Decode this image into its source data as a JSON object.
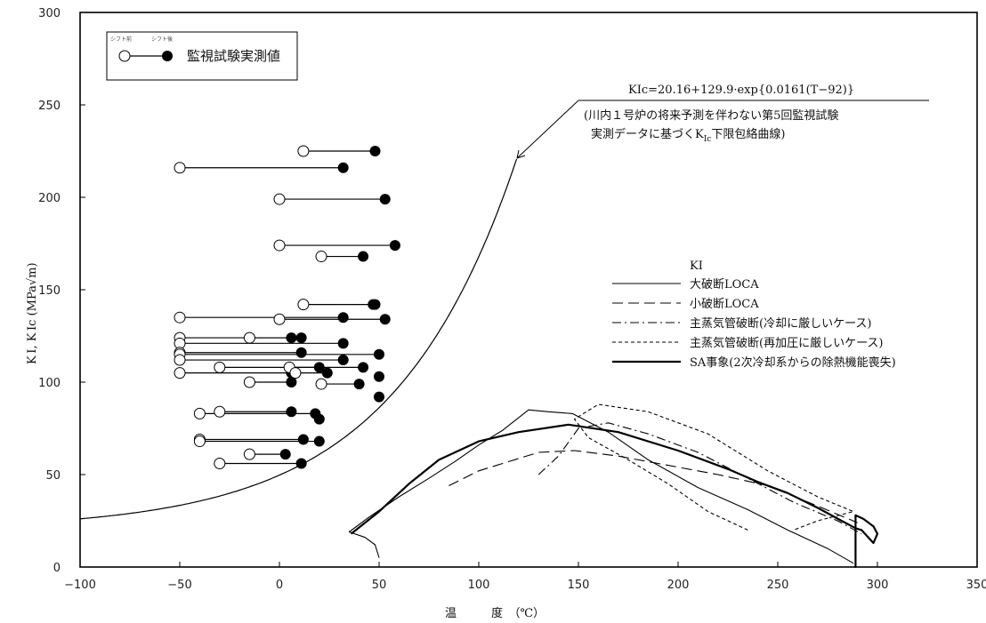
{
  "chart_data": {
    "type": "line",
    "xlabel": "温　　　度　（℃）",
    "ylabel": "K I, K Ic (MPa√m)",
    "xlim": [
      -100,
      350
    ],
    "ylim": [
      0,
      300
    ],
    "x_ticks": [
      "−100",
      "−50",
      "0",
      "50",
      "100",
      "150",
      "200",
      "250",
      "300",
      "350"
    ],
    "y_ticks": [
      "0",
      "50",
      "100",
      "150",
      "200",
      "250",
      "300"
    ],
    "grid": false,
    "box_legend": {
      "before_label": "シフト前",
      "after_label": "シフト後",
      "label": "監視試験実測値"
    },
    "curve_formula": "KIc=20.16+129.9·exp{0.0161(T−92)}",
    "curve_note_line1": "(川内１号炉の将来予測を伴わない第5回監視試験",
    "curve_note_line2": "実測データに基づくK",
    "curve_note_sub": "Ic",
    "curve_note_line2_end": "下限包絡曲線)",
    "legend": {
      "title": "KI",
      "items": [
        {
          "label": "大破断LOCA",
          "style": "solid"
        },
        {
          "label": "小破断LOCA",
          "style": "longdash"
        },
        {
          "label": "主蒸気管破断(冷却に厳しいケース)",
          "style": "dashdot"
        },
        {
          "label": "主蒸気管破断(再加圧に厳しいケース)",
          "style": "shortdash"
        },
        {
          "label": "SA事象(2次冷却系からの除熱機能喪失)",
          "style": "thick"
        }
      ]
    },
    "kic_curve": {
      "a": 20.16,
      "b": 129.9,
      "c": 0.0161,
      "t0": 92,
      "x_range": [
        -100,
        119
      ]
    },
    "surveillance_pairs": [
      {
        "before": 12,
        "after": 48,
        "k": 225
      },
      {
        "before": -50,
        "after": 32,
        "k": 216
      },
      {
        "before": 0,
        "after": 53,
        "k": 199
      },
      {
        "before": 0,
        "after": 58,
        "k": 174
      },
      {
        "before": 21,
        "after": 42,
        "k": 168
      },
      {
        "before": 12,
        "after": 47,
        "k": 142
      },
      {
        "before": -50,
        "after": 32,
        "k": 135
      },
      {
        "before": 0,
        "after": 53,
        "k": 134
      },
      {
        "before": -50,
        "after": 6,
        "k": 124
      },
      {
        "before": -15,
        "after": 11,
        "k": 124
      },
      {
        "before": -50,
        "after": 32,
        "k": 121
      },
      {
        "before": -50,
        "after": 11,
        "k": 116
      },
      {
        "before": -50,
        "after": 50,
        "k": 115
      },
      {
        "before": -50,
        "after": 32,
        "k": 112
      },
      {
        "before": -50,
        "after": 6,
        "k": 105
      },
      {
        "before": -30,
        "after": 42,
        "k": 108
      },
      {
        "before": 5,
        "after": 20,
        "k": 108
      },
      {
        "before": 8,
        "after": 24,
        "k": 105
      },
      {
        "before": -15,
        "after": 6,
        "k": 100
      },
      {
        "before": 21,
        "after": 40,
        "k": 99
      },
      {
        "before": -40,
        "after": 18,
        "k": 83
      },
      {
        "before": -30,
        "after": 6,
        "k": 84
      },
      {
        "before": -40,
        "after": 12,
        "k": 69
      },
      {
        "before": -40,
        "after": 20,
        "k": 68
      },
      {
        "before": -15,
        "after": 3,
        "k": 61
      },
      {
        "before": -30,
        "after": 11,
        "k": 56
      }
    ],
    "extra_after_points": [
      {
        "x": 50,
        "k": 103
      },
      {
        "x": 50,
        "k": 92
      },
      {
        "x": 20,
        "k": 80
      },
      {
        "x": 48,
        "k": 142
      }
    ],
    "transients": [
      {
        "name": "大破断LOCA",
        "style": "solid",
        "points": [
          [
            50,
            5
          ],
          [
            48,
            12
          ],
          [
            43,
            16
          ],
          [
            35,
            19
          ],
          [
            45,
            27
          ],
          [
            60,
            38
          ],
          [
            75,
            48
          ],
          [
            88,
            57
          ],
          [
            100,
            66
          ],
          [
            112,
            74
          ],
          [
            125,
            85
          ],
          [
            135,
            84
          ],
          [
            147,
            83
          ],
          [
            165,
            73
          ],
          [
            185,
            58
          ],
          [
            210,
            43
          ],
          [
            235,
            31
          ],
          [
            255,
            20
          ],
          [
            275,
            10
          ],
          [
            288,
            2
          ]
        ]
      },
      {
        "name": "小破断LOCA",
        "style": "longdash",
        "points": [
          [
            85,
            44
          ],
          [
            100,
            52
          ],
          [
            115,
            57
          ],
          [
            130,
            62
          ],
          [
            148,
            63
          ],
          [
            170,
            60
          ],
          [
            195,
            55
          ],
          [
            220,
            50
          ],
          [
            245,
            44
          ],
          [
            270,
            33
          ],
          [
            290,
            24
          ]
        ]
      },
      {
        "name": "主蒸気管破断(冷却に厳しいケース)",
        "style": "dashdot",
        "points": [
          [
            130,
            50
          ],
          [
            140,
            60
          ],
          [
            150,
            75
          ],
          [
            165,
            78
          ],
          [
            185,
            72
          ],
          [
            210,
            62
          ],
          [
            235,
            48
          ],
          [
            258,
            35
          ],
          [
            280,
            25
          ],
          [
            292,
            18
          ]
        ]
      },
      {
        "name": "主蒸気管破断(再加圧に厳しいケース)",
        "style": "shortdash",
        "points": [
          [
            235,
            20
          ],
          [
            215,
            30
          ],
          [
            195,
            45
          ],
          [
            175,
            58
          ],
          [
            155,
            70
          ],
          [
            148,
            80
          ],
          [
            160,
            88
          ],
          [
            185,
            84
          ],
          [
            215,
            72
          ],
          [
            245,
            52
          ],
          [
            270,
            38
          ],
          [
            288,
            30
          ],
          [
            270,
            25
          ],
          [
            258,
            20
          ]
        ]
      },
      {
        "name": "SA事象(2次冷却系からの除熱機能喪失)",
        "style": "thick",
        "points": [
          [
            36,
            18
          ],
          [
            50,
            30
          ],
          [
            65,
            45
          ],
          [
            80,
            58
          ],
          [
            100,
            68
          ],
          [
            120,
            73
          ],
          [
            145,
            77
          ],
          [
            170,
            73
          ],
          [
            200,
            63
          ],
          [
            225,
            53
          ],
          [
            240,
            46
          ],
          [
            255,
            40
          ],
          [
            270,
            32
          ],
          [
            282,
            25
          ],
          [
            289,
            21
          ],
          [
            289,
            0
          ],
          [
            289,
            28
          ],
          [
            293,
            26
          ],
          [
            298,
            22
          ],
          [
            300,
            18
          ],
          [
            298,
            13
          ],
          [
            292,
            20
          ],
          [
            289,
            21
          ]
        ]
      }
    ]
  }
}
